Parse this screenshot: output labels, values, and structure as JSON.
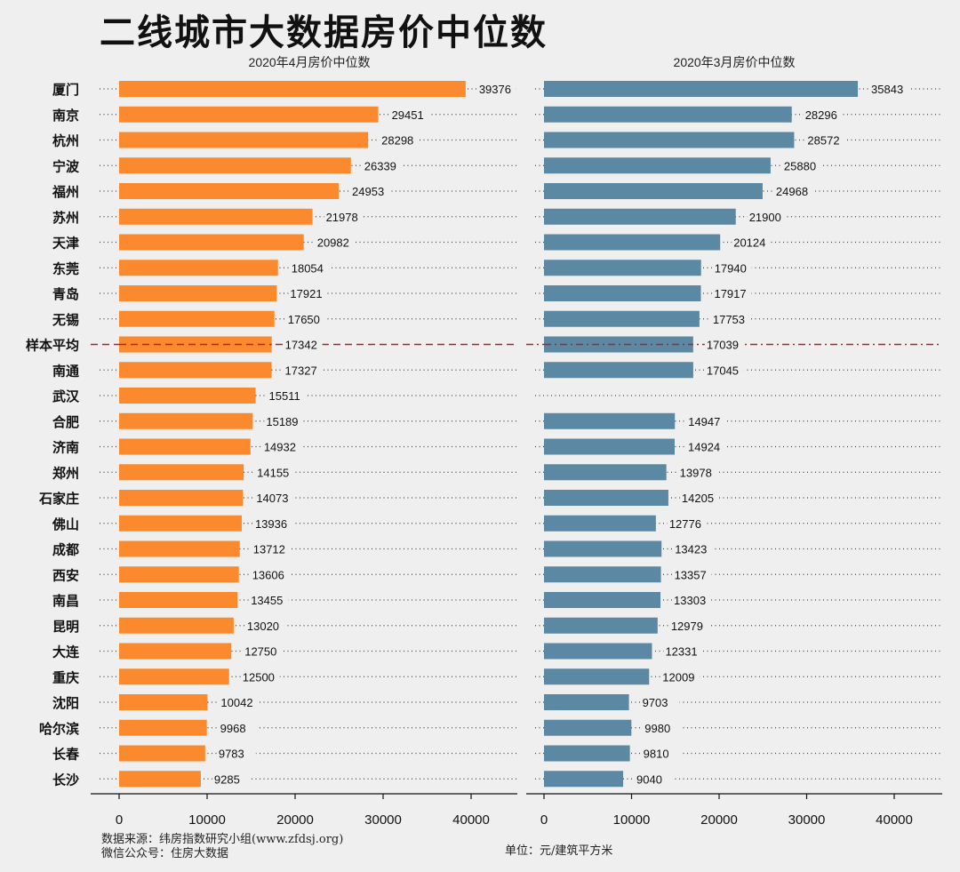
{
  "title": "二线城市大数据房价中位数",
  "source_line1": "数据来源：纬房指数研究小组(www.zfdsj.org)",
  "source_line2": "微信公众号：住房大数据",
  "unit": "单位：元/建筑平方米",
  "colors": {
    "april": "#fb8a2e",
    "march": "#5b88a3",
    "avg_line": "#b22222"
  },
  "chart_data": [
    {
      "type": "bar",
      "orientation": "horizontal",
      "title": "2020年4月房价中位数",
      "categories": [
        "厦门",
        "南京",
        "杭州",
        "宁波",
        "福州",
        "苏州",
        "天津",
        "东莞",
        "青岛",
        "无锡",
        "样本平均",
        "南通",
        "武汉",
        "合肥",
        "济南",
        "郑州",
        "石家庄",
        "佛山",
        "成都",
        "西安",
        "南昌",
        "昆明",
        "大连",
        "重庆",
        "沈阳",
        "哈尔滨",
        "长春",
        "长沙"
      ],
      "values": [
        39376,
        29451,
        28298,
        26339,
        24953,
        21978,
        20982,
        18054,
        17921,
        17650,
        17342,
        17327,
        15511,
        15189,
        14932,
        14155,
        14073,
        13936,
        13712,
        13606,
        13455,
        13020,
        12750,
        12500,
        10042,
        9968,
        9783,
        9285
      ],
      "average_category": "样本平均",
      "average_line_style": "dashed",
      "xlim": [
        0,
        45000
      ],
      "xticks": [
        0,
        10000,
        20000,
        30000,
        40000
      ],
      "grid": "dotted-horizontal"
    },
    {
      "type": "bar",
      "orientation": "horizontal",
      "title": "2020年3月房价中位数",
      "categories": [
        "厦门",
        "南京",
        "杭州",
        "宁波",
        "福州",
        "苏州",
        "天津",
        "东莞",
        "青岛",
        "无锡",
        "样本平均",
        "南通",
        "武汉",
        "合肥",
        "济南",
        "郑州",
        "石家庄",
        "佛山",
        "成都",
        "西安",
        "南昌",
        "昆明",
        "大连",
        "重庆",
        "沈阳",
        "哈尔滨",
        "长春",
        "长沙"
      ],
      "values": [
        35843,
        28296,
        28572,
        25880,
        24968,
        21900,
        20124,
        17940,
        17917,
        17753,
        17039,
        17045,
        null,
        14947,
        14924,
        13978,
        14205,
        12776,
        13423,
        13357,
        13303,
        12979,
        12331,
        12009,
        9703,
        9980,
        9810,
        9040
      ],
      "average_category": "样本平均",
      "average_line_style": "dash-dot",
      "xlim": [
        0,
        45000
      ],
      "xticks": [
        0,
        10000,
        20000,
        30000,
        40000
      ],
      "grid": "dotted-horizontal"
    }
  ]
}
